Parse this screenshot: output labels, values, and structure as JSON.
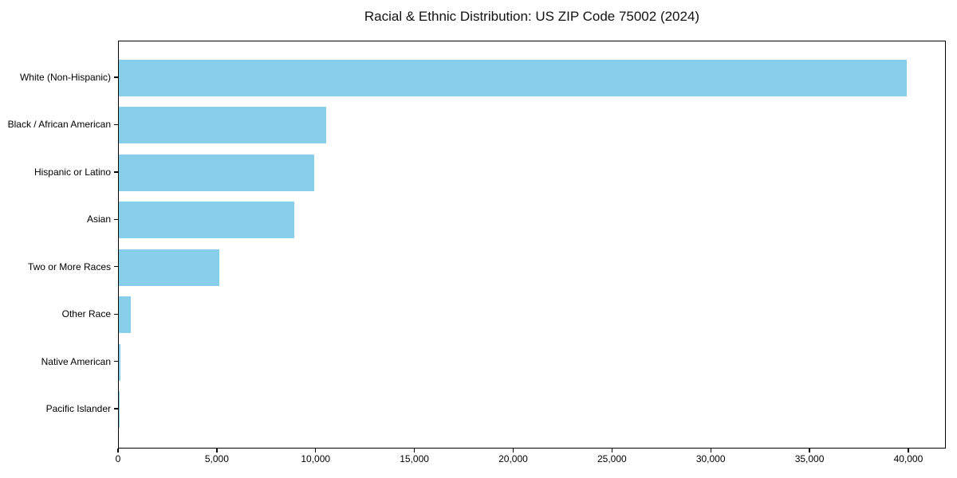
{
  "chart_data": {
    "type": "bar",
    "orientation": "horizontal",
    "title": "Racial & Ethnic Distribution: US ZIP Code 75002 (2024)",
    "categories": [
      "White (Non-Hispanic)",
      "Black / African American",
      "Hispanic or Latino",
      "Asian",
      "Two or More Races",
      "Other Race",
      "Native American",
      "Pacific Islander"
    ],
    "values": [
      39900,
      10500,
      9900,
      8900,
      5100,
      600,
      100,
      30
    ],
    "xlabel": "",
    "ylabel": "",
    "xlim": [
      0,
      41900
    ],
    "x_ticks": [
      0,
      5000,
      10000,
      15000,
      20000,
      25000,
      30000,
      35000,
      40000
    ],
    "x_tick_labels": [
      "0",
      "5,000",
      "10,000",
      "15,000",
      "20,000",
      "25,000",
      "30,000",
      "35,000",
      "40,000"
    ],
    "bar_color": "#87CEEB",
    "axis_color": "#000000",
    "background_color": "#ffffff",
    "grid": false,
    "legend": null
  }
}
